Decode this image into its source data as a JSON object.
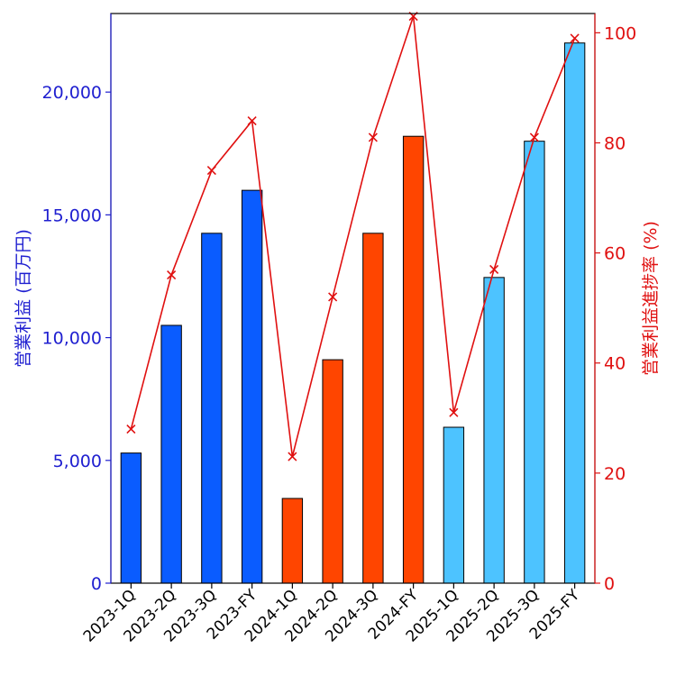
{
  "chart_data": {
    "type": "bar",
    "categories": [
      "2023-1Q",
      "2023-2Q",
      "2023-3Q",
      "2023-FY",
      "2024-1Q",
      "2024-2Q",
      "2024-3Q",
      "2024-FY",
      "2025-1Q",
      "2025-2Q",
      "2025-3Q",
      "2025-FY"
    ],
    "series": [
      {
        "type": "bar",
        "axis": "left",
        "values": [
          5300,
          10500,
          14250,
          16000,
          3450,
          9100,
          14250,
          18200,
          6350,
          12450,
          18000,
          22000
        ],
        "colors": [
          "#0a5cff",
          "#0a5cff",
          "#0a5cff",
          "#0a5cff",
          "#ff4500",
          "#ff4500",
          "#ff4500",
          "#ff4500",
          "#4dc3ff",
          "#4dc3ff",
          "#4dc3ff",
          "#4dc3ff"
        ]
      },
      {
        "type": "line",
        "axis": "right",
        "marker": "x",
        "color": "#e01010",
        "values": [
          28,
          56,
          75,
          84,
          23,
          52,
          81,
          103,
          31,
          57,
          81,
          99
        ]
      }
    ],
    "ylabel": "営業利益 (百万円)",
    "y2label": "営業利益進捗率 (%)",
    "xlabel": "",
    "ylim": [
      0,
      23200
    ],
    "y2lim": [
      0,
      103.5
    ],
    "yticks": [
      0,
      5000,
      10000,
      15000,
      20000
    ],
    "ytick_labels": [
      "0",
      "5,000",
      "10,000",
      "15,000",
      "20,000"
    ],
    "y2ticks": [
      0,
      20,
      40,
      60,
      80,
      100
    ],
    "y2tick_labels": [
      "0",
      "20",
      "40",
      "60",
      "80",
      "100"
    ],
    "left_axis_color": "#1f1fd0",
    "right_axis_color": "#e01010",
    "grid": false
  }
}
